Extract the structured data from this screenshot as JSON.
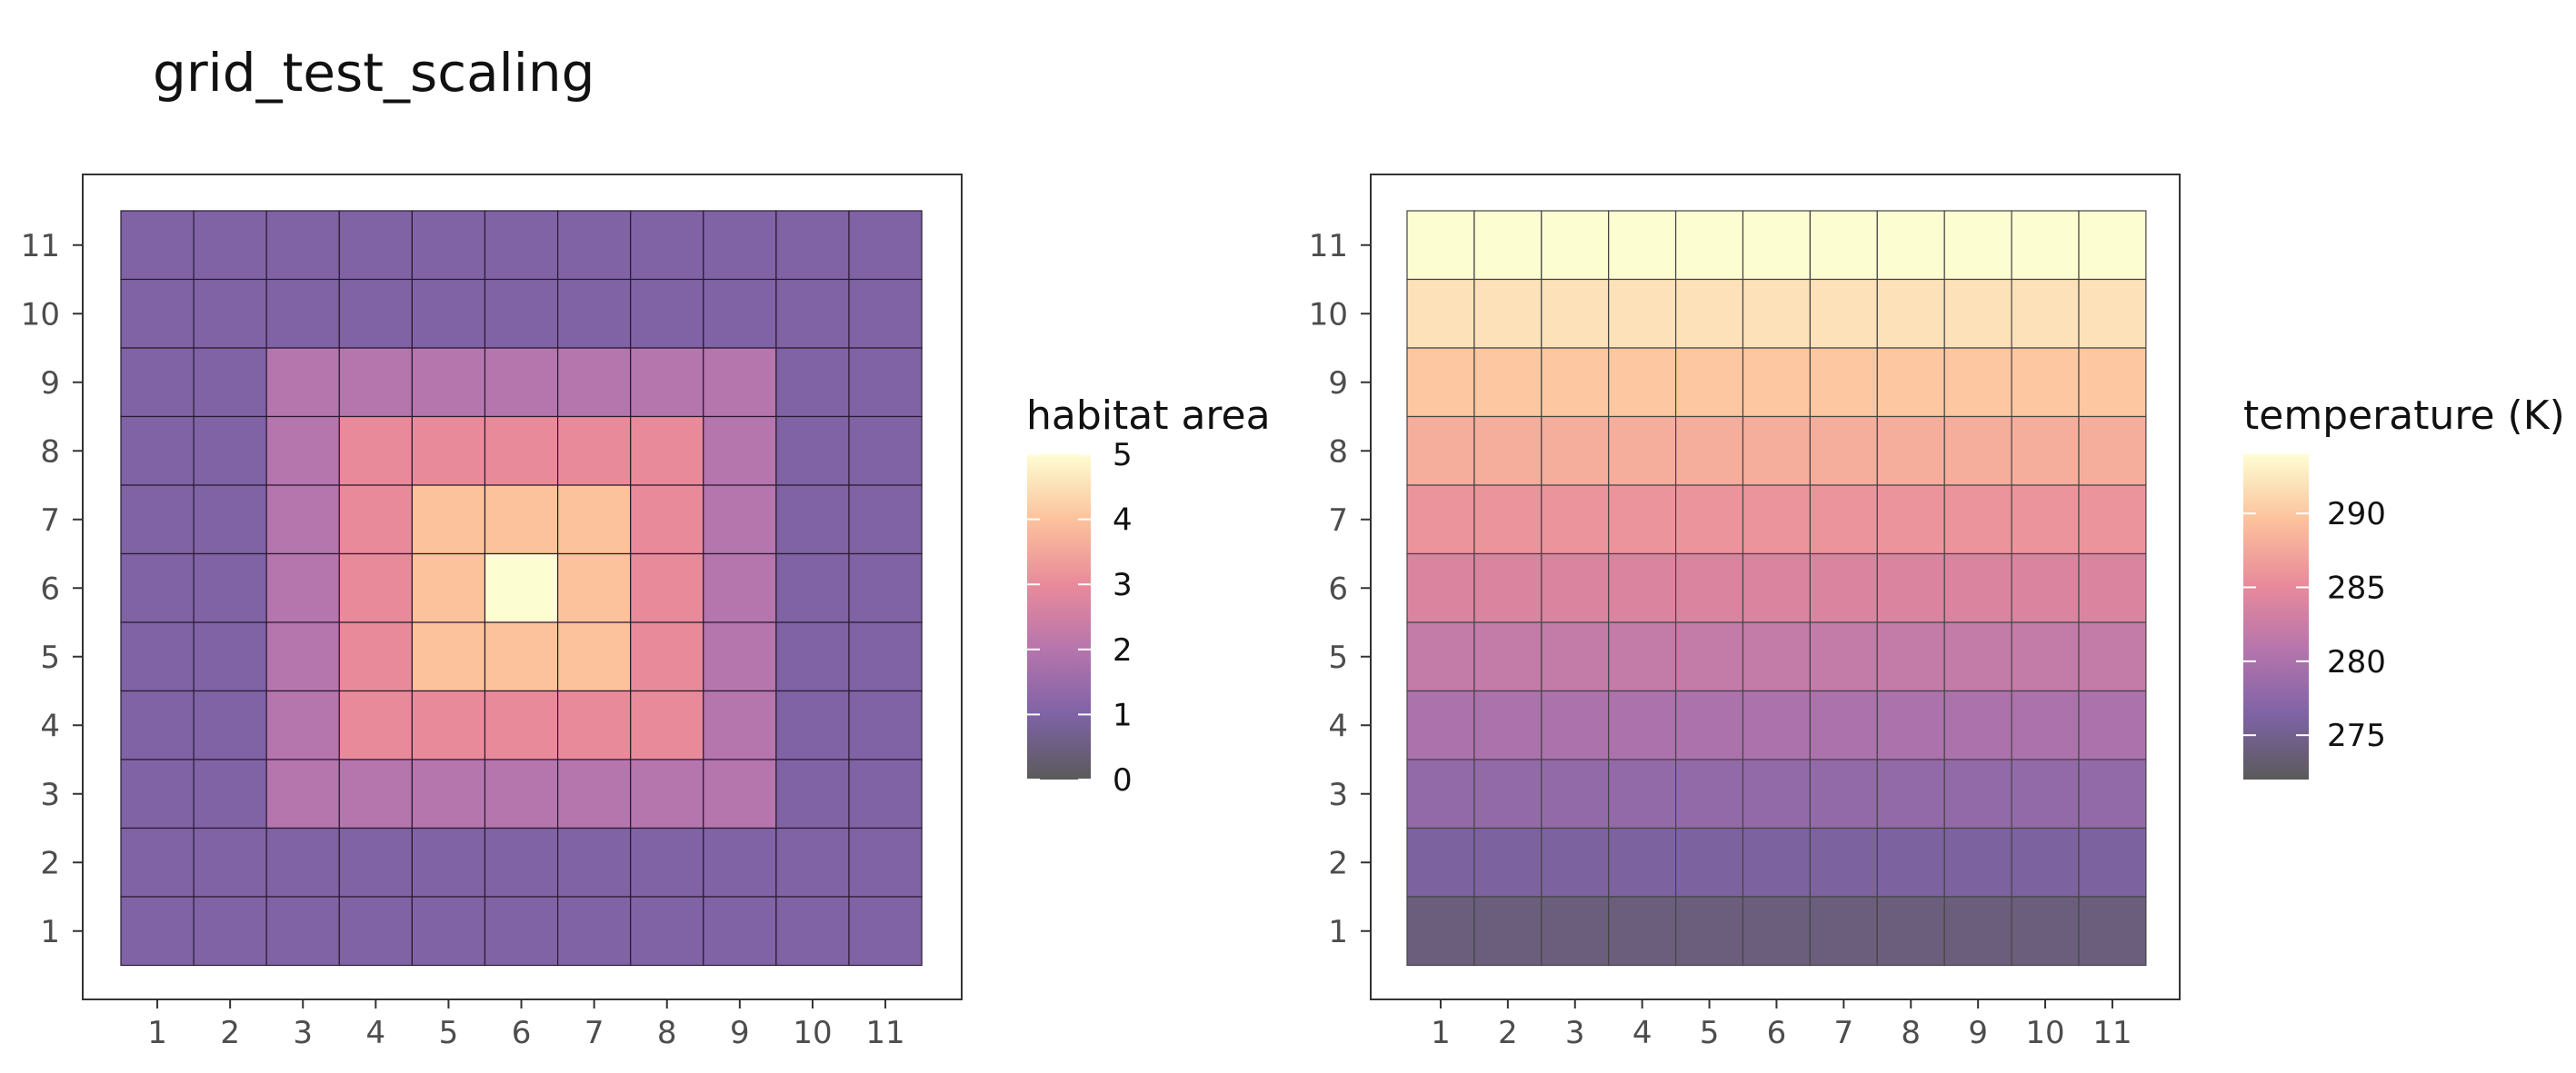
{
  "title": "grid_test_scaling",
  "chart_data": [
    {
      "type": "heatmap",
      "title": "",
      "x": [
        1,
        2,
        3,
        4,
        5,
        6,
        7,
        8,
        9,
        10,
        11
      ],
      "y": [
        1,
        2,
        3,
        4,
        5,
        6,
        7,
        8,
        9,
        10,
        11
      ],
      "x_ticks": [
        "1",
        "2",
        "3",
        "4",
        "5",
        "6",
        "7",
        "8",
        "9",
        "10",
        "11"
      ],
      "y_ticks": [
        "1",
        "2",
        "3",
        "4",
        "5",
        "6",
        "7",
        "8",
        "9",
        "10",
        "11"
      ],
      "legend_title": "habitat area",
      "legend_labels": [
        "0",
        "1",
        "2",
        "3",
        "4",
        "5"
      ],
      "legend_breaks": [
        0,
        1,
        2,
        3,
        4,
        5
      ],
      "value_range": [
        0,
        5
      ],
      "values": [
        [
          1,
          1,
          1,
          1,
          1,
          1,
          1,
          1,
          1,
          1,
          1
        ],
        [
          1,
          1,
          1,
          1,
          1,
          1,
          1,
          1,
          1,
          1,
          1
        ],
        [
          1,
          1,
          2,
          2,
          2,
          2,
          2,
          2,
          2,
          1,
          1
        ],
        [
          1,
          1,
          2,
          3,
          3,
          3,
          3,
          3,
          2,
          1,
          1
        ],
        [
          1,
          1,
          2,
          3,
          4,
          4,
          4,
          3,
          2,
          1,
          1
        ],
        [
          1,
          1,
          2,
          3,
          4,
          5,
          4,
          3,
          2,
          1,
          1
        ],
        [
          1,
          1,
          2,
          3,
          4,
          4,
          4,
          3,
          2,
          1,
          1
        ],
        [
          1,
          1,
          2,
          3,
          3,
          3,
          3,
          3,
          2,
          1,
          1
        ],
        [
          1,
          1,
          2,
          2,
          2,
          2,
          2,
          2,
          2,
          1,
          1
        ],
        [
          1,
          1,
          1,
          1,
          1,
          1,
          1,
          1,
          1,
          1,
          1
        ],
        [
          1,
          1,
          1,
          1,
          1,
          1,
          1,
          1,
          1,
          1,
          1
        ]
      ],
      "colormap": [
        "#5a5a5a",
        "#7f63a5",
        "#b575ad",
        "#e98a9b",
        "#fcc29c",
        "#fdfdd2"
      ],
      "grid": false,
      "legend_position": "right"
    },
    {
      "type": "heatmap",
      "title": "",
      "x": [
        1,
        2,
        3,
        4,
        5,
        6,
        7,
        8,
        9,
        10,
        11
      ],
      "y": [
        1,
        2,
        3,
        4,
        5,
        6,
        7,
        8,
        9,
        10,
        11
      ],
      "x_ticks": [
        "1",
        "2",
        "3",
        "4",
        "5",
        "6",
        "7",
        "8",
        "9",
        "10",
        "11"
      ],
      "y_ticks": [
        "1",
        "2",
        "3",
        "4",
        "5",
        "6",
        "7",
        "8",
        "9",
        "10",
        "11"
      ],
      "legend_title": "temperature (K)",
      "legend_labels": [
        "275",
        "280",
        "285",
        "290"
      ],
      "legend_breaks": [
        275,
        280,
        285,
        290
      ],
      "value_range": [
        272,
        294
      ],
      "row_values": [
        294,
        292,
        290,
        288,
        286,
        284,
        282,
        280,
        278,
        276,
        274
      ],
      "colormap": [
        "#5a5a5a",
        "#7f63a5",
        "#b575ad",
        "#e98a9b",
        "#fcc29c",
        "#fdfdd2"
      ],
      "grid": false,
      "legend_position": "right"
    }
  ]
}
